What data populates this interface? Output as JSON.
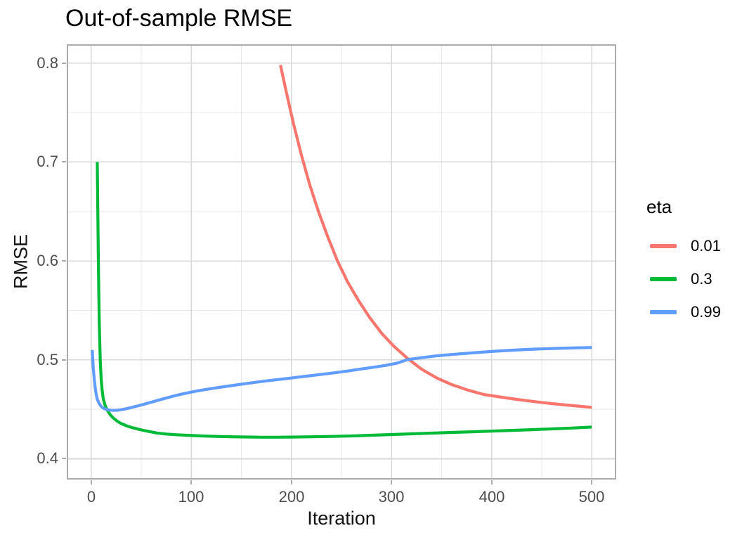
{
  "title": "Out-of-sample RMSE",
  "colors": {
    "background": "#FFFFFF",
    "panel_border": "#ABABAB",
    "grid_major": "#D9D9D9",
    "grid_minor": "#E8E8E8",
    "tick_mark": "#ABABAB",
    "tick_label": "#4D4D4D",
    "text": "#000000",
    "series_red": "#F8766D",
    "series_green": "#00BA38",
    "series_blue": "#619CFF"
  },
  "chart_data": {
    "type": "line",
    "title": "Out-of-sample RMSE",
    "xlabel": "Iteration",
    "ylabel": "RMSE",
    "legend_title": "eta",
    "legend_position": "right",
    "grid": true,
    "xlim": [
      0,
      500
    ],
    "ylim": [
      0.4,
      0.8
    ],
    "x_view": [
      -24.5,
      524.5
    ],
    "y_view": [
      0.379,
      0.819
    ],
    "x_ticks": [
      {
        "v": 0,
        "label": "0"
      },
      {
        "v": 100,
        "label": "100"
      },
      {
        "v": 200,
        "label": "200"
      },
      {
        "v": 300,
        "label": "300"
      },
      {
        "v": 400,
        "label": "400"
      },
      {
        "v": 500,
        "label": "500"
      }
    ],
    "y_ticks": [
      {
        "v": 0.4,
        "label": "0.4"
      },
      {
        "v": 0.5,
        "label": "0.5"
      },
      {
        "v": 0.6,
        "label": "0.6"
      },
      {
        "v": 0.7,
        "label": "0.7"
      },
      {
        "v": 0.8,
        "label": "0.8"
      }
    ],
    "x_minor": [
      50,
      150,
      250,
      350,
      450
    ],
    "y_minor": [
      0.45,
      0.55,
      0.65,
      0.75
    ],
    "series": [
      {
        "name": "0.01",
        "color": "#F8766D",
        "points": [
          [
            189,
            0.798
          ],
          [
            195,
            0.77
          ],
          [
            202,
            0.739
          ],
          [
            210,
            0.707
          ],
          [
            218,
            0.678
          ],
          [
            227,
            0.65
          ],
          [
            236,
            0.625
          ],
          [
            246,
            0.6
          ],
          [
            256,
            0.579
          ],
          [
            267,
            0.56
          ],
          [
            278,
            0.543
          ],
          [
            290,
            0.527
          ],
          [
            302,
            0.514
          ],
          [
            316,
            0.5015
          ],
          [
            330,
            0.4905
          ],
          [
            345,
            0.4818
          ],
          [
            360,
            0.475
          ],
          [
            376,
            0.4695
          ],
          [
            392,
            0.465
          ],
          [
            408,
            0.4625
          ],
          [
            425,
            0.46
          ],
          [
            442,
            0.4578
          ],
          [
            460,
            0.4558
          ],
          [
            478,
            0.454
          ],
          [
            500,
            0.452
          ]
        ]
      },
      {
        "name": "0.3",
        "color": "#00BA38",
        "points": [
          [
            6,
            0.7
          ],
          [
            6.5,
            0.652
          ],
          [
            7,
            0.606
          ],
          [
            7.5,
            0.568
          ],
          [
            8,
            0.537
          ],
          [
            9,
            0.499
          ],
          [
            10,
            0.479
          ],
          [
            11,
            0.468
          ],
          [
            12,
            0.4605
          ],
          [
            14,
            0.4535
          ],
          [
            16,
            0.449
          ],
          [
            19,
            0.4445
          ],
          [
            22,
            0.4412
          ],
          [
            26,
            0.438
          ],
          [
            30,
            0.4355
          ],
          [
            36,
            0.433
          ],
          [
            42,
            0.4312
          ],
          [
            50,
            0.4292
          ],
          [
            58,
            0.4275
          ],
          [
            66,
            0.426
          ],
          [
            75,
            0.425
          ],
          [
            85,
            0.4243
          ],
          [
            95,
            0.4238
          ],
          [
            110,
            0.4231
          ],
          [
            125,
            0.4226
          ],
          [
            140,
            0.4222
          ],
          [
            155,
            0.422
          ],
          [
            170,
            0.4218
          ],
          [
            185,
            0.4218
          ],
          [
            200,
            0.4219
          ],
          [
            220,
            0.4222
          ],
          [
            240,
            0.4226
          ],
          [
            260,
            0.4231
          ],
          [
            280,
            0.4238
          ],
          [
            300,
            0.4245
          ],
          [
            320,
            0.4252
          ],
          [
            340,
            0.4259
          ],
          [
            360,
            0.4266
          ],
          [
            380,
            0.4273
          ],
          [
            400,
            0.428
          ],
          [
            420,
            0.4287
          ],
          [
            440,
            0.4294
          ],
          [
            460,
            0.4302
          ],
          [
            480,
            0.431
          ],
          [
            500,
            0.432
          ]
        ]
      },
      {
        "name": "0.99",
        "color": "#619CFF",
        "points": [
          [
            1,
            0.51
          ],
          [
            2,
            0.492
          ],
          [
            3,
            0.48
          ],
          [
            4,
            0.471
          ],
          [
            5,
            0.4648
          ],
          [
            6,
            0.4602
          ],
          [
            8,
            0.4556
          ],
          [
            10,
            0.4528
          ],
          [
            12,
            0.4512
          ],
          [
            15,
            0.4499
          ],
          [
            18,
            0.4492
          ],
          [
            22,
            0.4489
          ],
          [
            26,
            0.4491
          ],
          [
            30,
            0.4496
          ],
          [
            35,
            0.4506
          ],
          [
            40,
            0.4518
          ],
          [
            46,
            0.4533
          ],
          [
            52,
            0.4549
          ],
          [
            58,
            0.4566
          ],
          [
            65,
            0.4586
          ],
          [
            72,
            0.4606
          ],
          [
            80,
            0.4628
          ],
          [
            88,
            0.4648
          ],
          [
            96,
            0.4666
          ],
          [
            105,
            0.4684
          ],
          [
            115,
            0.4701
          ],
          [
            125,
            0.4717
          ],
          [
            135,
            0.4732
          ],
          [
            145,
            0.4747
          ],
          [
            155,
            0.4761
          ],
          [
            165,
            0.4774
          ],
          [
            175,
            0.4787
          ],
          [
            185,
            0.4799
          ],
          [
            195,
            0.4811
          ],
          [
            205,
            0.4823
          ],
          [
            215,
            0.4835
          ],
          [
            225,
            0.4847
          ],
          [
            235,
            0.4859
          ],
          [
            245,
            0.4872
          ],
          [
            258,
            0.489
          ],
          [
            270,
            0.4908
          ],
          [
            282,
            0.4925
          ],
          [
            294,
            0.4944
          ],
          [
            306,
            0.4968
          ],
          [
            316,
            0.5003
          ],
          [
            330,
            0.5022
          ],
          [
            345,
            0.504
          ],
          [
            360,
            0.5054
          ],
          [
            375,
            0.5066
          ],
          [
            390,
            0.5077
          ],
          [
            405,
            0.5088
          ],
          [
            420,
            0.5097
          ],
          [
            435,
            0.5105
          ],
          [
            450,
            0.5111
          ],
          [
            465,
            0.5116
          ],
          [
            480,
            0.512
          ],
          [
            500,
            0.5125
          ]
        ]
      }
    ]
  }
}
